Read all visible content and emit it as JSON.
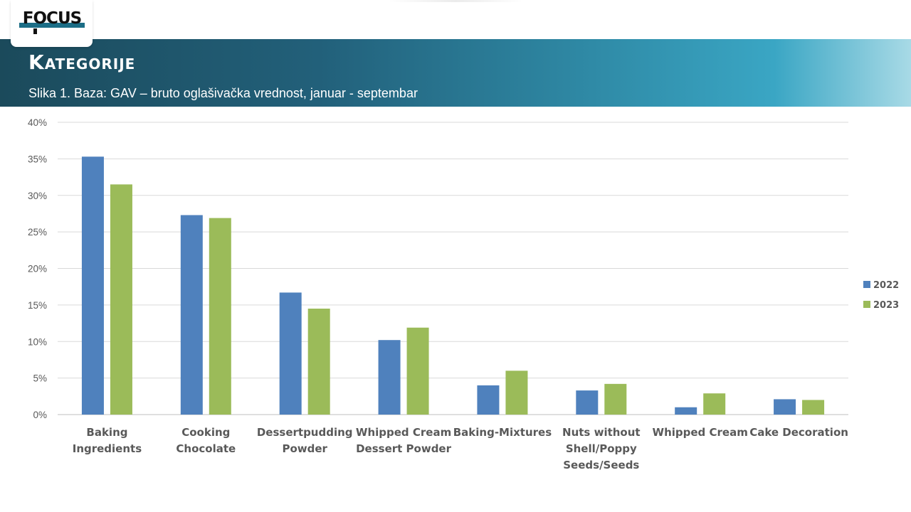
{
  "header": {
    "title": "Kategorije",
    "subtitle": "Slika 1. Baza: GAV – bruto oglašivačka vrednost, januar - septembar"
  },
  "logo": {
    "text": "FOCUS",
    "icon": "focus-logo"
  },
  "colors": {
    "series_2022": "#4f81bd",
    "series_2023": "#9bbb59",
    "grid": "#d9d9d9",
    "header_dark": "#1b4a5b",
    "header_light": "#a8dae6"
  },
  "chart_data": {
    "type": "bar",
    "categories": [
      "Baking Ingredients",
      "Cooking Chocolate",
      "Dessertpudding Powder",
      "Whipped Cream Dessert Powder",
      "Baking-Mixtures",
      "Nuts without Shell/Poppy Seeds/Seeds",
      "Whipped Cream",
      "Cake Decoration"
    ],
    "category_label_lines": [
      [
        "Baking",
        "Ingredients"
      ],
      [
        "Cooking",
        "Chocolate"
      ],
      [
        "Dessertpudding",
        "Powder"
      ],
      [
        "Whipped Cream",
        "Dessert Powder"
      ],
      [
        "Baking-Mixtures"
      ],
      [
        "Nuts without",
        "Shell/Poppy",
        "Seeds/Seeds"
      ],
      [
        "Whipped Cream"
      ],
      [
        "Cake Decoration"
      ]
    ],
    "series": [
      {
        "name": "2022",
        "values": [
          35.3,
          27.3,
          16.7,
          10.2,
          4.0,
          3.3,
          1.0,
          2.1
        ]
      },
      {
        "name": "2023",
        "values": [
          31.5,
          26.9,
          14.5,
          11.9,
          6.0,
          4.2,
          2.9,
          2.0
        ]
      }
    ],
    "yticks": [
      "0%",
      "5%",
      "10%",
      "15%",
      "20%",
      "25%",
      "30%",
      "35%",
      "40%"
    ],
    "ylim": [
      0,
      40
    ],
    "grid": true,
    "legend_position": "right"
  }
}
